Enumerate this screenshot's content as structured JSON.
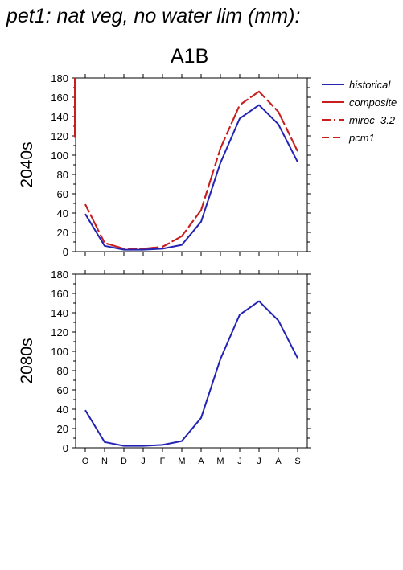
{
  "title": "pet1: nat veg, no water lim (mm):",
  "scenario": "A1B",
  "colors": {
    "historical": "#2424b4",
    "projection": "#c81e1e"
  },
  "legend": [
    {
      "label": "historical",
      "style": "solid",
      "color": "#2424b4"
    },
    {
      "label": "composite",
      "style": "solid",
      "color": "#c81e1e"
    },
    {
      "label": "miroc_3.2",
      "style": "dashdot",
      "color": "#c81e1e"
    },
    {
      "label": "pcm1",
      "style": "dashed",
      "color": "#c81e1e"
    }
  ],
  "chart_data": [
    {
      "type": "line",
      "row_label": "2040s",
      "categories": [
        "O",
        "N",
        "D",
        "J",
        "F",
        "M",
        "A",
        "M",
        "J",
        "J",
        "A",
        "S"
      ],
      "ylim": [
        0,
        180
      ],
      "yticks": [
        0,
        20,
        40,
        60,
        80,
        100,
        120,
        140,
        160,
        180
      ],
      "series": [
        {
          "name": "historical",
          "style": "solid",
          "color": "#2424b4",
          "values": [
            39,
            6,
            2,
            2,
            3,
            7,
            31,
            92,
            138,
            152,
            132,
            93
          ]
        },
        {
          "name": "miroc_3.2",
          "style": "dashdot",
          "color": "#c81e1e",
          "values": [
            49,
            9,
            3,
            3,
            5,
            16,
            43,
            107,
            152,
            166,
            145,
            104
          ]
        },
        {
          "name": "pcm1",
          "style": "dashed",
          "color": "#c81e1e",
          "values": [
            49,
            9,
            3,
            3,
            5,
            16,
            43,
            107,
            152,
            166,
            145,
            104
          ]
        }
      ],
      "composite_trace": {
        "name": "composite",
        "style": "solid",
        "color": "#c81e1e",
        "y_range": [
          118,
          180
        ]
      }
    },
    {
      "type": "line",
      "row_label": "2080s",
      "categories": [
        "O",
        "N",
        "D",
        "J",
        "F",
        "M",
        "A",
        "M",
        "J",
        "J",
        "A",
        "S"
      ],
      "ylim": [
        0,
        180
      ],
      "yticks": [
        0,
        20,
        40,
        60,
        80,
        100,
        120,
        140,
        160,
        180
      ],
      "series": [
        {
          "name": "historical",
          "style": "solid",
          "color": "#2424b4",
          "values": [
            39,
            6,
            2,
            2,
            3,
            7,
            31,
            92,
            138,
            152,
            132,
            93
          ]
        }
      ]
    }
  ]
}
